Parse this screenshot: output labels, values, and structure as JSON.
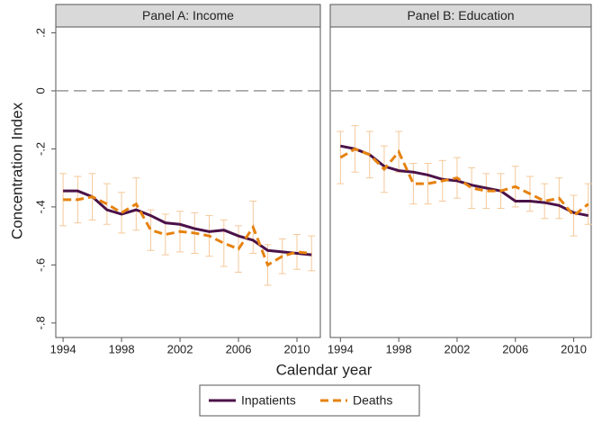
{
  "figure": {
    "x_label": "Calendar year",
    "y_label": "Concentration Index"
  },
  "chart_data": [
    {
      "type": "line",
      "title": "Panel A: Income",
      "x": [
        1994,
        1995,
        1996,
        1997,
        1998,
        1999,
        2000,
        2001,
        2002,
        2003,
        2004,
        2005,
        2006,
        2007,
        2008,
        2009,
        2010,
        2011
      ],
      "series": [
        {
          "name": "Inpatients",
          "color": "#4b1248",
          "dash": false,
          "values": [
            -0.345,
            -0.345,
            -0.365,
            -0.41,
            -0.425,
            -0.41,
            -0.43,
            -0.455,
            -0.46,
            -0.475,
            -0.485,
            -0.48,
            -0.5,
            -0.515,
            -0.55,
            -0.555,
            -0.56,
            -0.565
          ]
        },
        {
          "name": "Deaths",
          "color": "#e6820e",
          "dash": true,
          "error_color": "#f5c89a",
          "values": [
            -0.375,
            -0.375,
            -0.365,
            -0.39,
            -0.42,
            -0.39,
            -0.48,
            -0.495,
            -0.485,
            -0.49,
            -0.5,
            -0.525,
            -0.545,
            -0.47,
            -0.6,
            -0.57,
            -0.555,
            -0.56
          ],
          "errors": [
            0.09,
            0.08,
            0.08,
            0.07,
            0.07,
            0.09,
            0.07,
            0.07,
            0.07,
            0.07,
            0.07,
            0.08,
            0.08,
            0.09,
            0.07,
            0.06,
            0.06,
            0.06
          ]
        }
      ],
      "xlim": [
        1993.5,
        2011.6
      ],
      "xticks": [
        1994,
        1998,
        2002,
        2006,
        2010
      ],
      "ylim": [
        -0.85,
        0.22
      ],
      "yticks": [
        {
          "value": 0.2,
          "label": ".2"
        },
        0,
        {
          "value": -0.2,
          "label": "-.2"
        },
        {
          "value": -0.4,
          "label": "-.4"
        },
        {
          "value": -0.6,
          "label": "-.6"
        },
        {
          "value": -0.8,
          "label": "-.8"
        }
      ],
      "reference_line": 0,
      "legend": "bottom"
    },
    {
      "type": "line",
      "title": "Panel B: Education",
      "x": [
        1994,
        1995,
        1996,
        1997,
        1998,
        1999,
        2000,
        2001,
        2002,
        2003,
        2004,
        2005,
        2006,
        2007,
        2008,
        2009,
        2010,
        2011
      ],
      "series": [
        {
          "color": "#4b1248",
          "dash": false,
          "values": [
            -0.19,
            -0.2,
            -0.22,
            -0.26,
            -0.275,
            -0.28,
            -0.29,
            -0.305,
            -0.31,
            -0.325,
            -0.335,
            -0.345,
            -0.38,
            -0.38,
            -0.385,
            -0.395,
            -0.42,
            -0.43
          ]
        },
        {
          "color": "#e6820e",
          "dash": true,
          "error_color": "#f5c89a",
          "values": [
            -0.23,
            -0.2,
            -0.22,
            -0.27,
            -0.21,
            -0.32,
            -0.32,
            -0.31,
            -0.3,
            -0.335,
            -0.345,
            -0.345,
            -0.33,
            -0.355,
            -0.38,
            -0.37,
            -0.43,
            -0.39
          ],
          "errors": [
            0.09,
            0.08,
            0.08,
            0.08,
            0.07,
            0.07,
            0.07,
            0.07,
            0.07,
            0.07,
            0.06,
            0.06,
            0.07,
            0.06,
            0.06,
            0.07,
            0.07,
            0.07
          ]
        }
      ],
      "xlim": [
        1993.3,
        2011.2
      ],
      "xticks": [
        1994,
        1998,
        2002,
        2006,
        2010
      ],
      "ylim": [
        -0.85,
        0.22
      ],
      "reference_line": 0
    }
  ]
}
